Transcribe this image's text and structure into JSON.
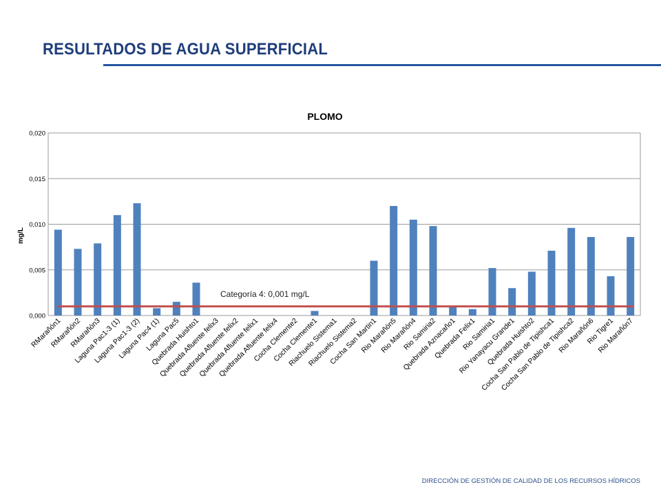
{
  "slide": {
    "title": "RESULTADOS DE AGUA SUPERFICIAL",
    "footer": "DIRECCIÓN DE GESTIÓN DE CALIDAD DE LOS RECURSOS HÍDRICOS"
  },
  "colors": {
    "title": "#1f3d7a",
    "rule": "#2255a0",
    "bar": "#4f81bd",
    "reference_line": "#c0504d",
    "gridline": "#9a9a9a"
  },
  "chart_data": {
    "type": "bar",
    "title": "PLOMO",
    "ylabel": "mg/L",
    "xlabel": "",
    "ylim": [
      0,
      0.02
    ],
    "yticks": [
      "0,000",
      "0,005",
      "0,010",
      "0,015",
      "0,020"
    ],
    "ytick_values": [
      0,
      0.005,
      0.01,
      0.015,
      0.02
    ],
    "grid": true,
    "legend": "none",
    "categories": [
      "RMarañón1",
      "RMarañón2",
      "RMarañón3",
      "Laguna Pac1-3 (1)",
      "Laguna Pac1-3 (2)",
      "Laguna Pac4 (1)",
      "Laguna Pac5",
      "Quebrada Huishto1",
      "Quebrada Afluente felix3",
      "Quebrada Afluente felix2",
      "Quebrada Afluente felix1",
      "Quebrada Afluente felix4",
      "Cocha Clemente2",
      "Cocha Clemente1",
      "Riachuelo Sistema1",
      "Riachuelo Sistema2",
      "Cocha San Martin1",
      "Rio Marañón5",
      "Rio Marañón4",
      "Rio Samiria2",
      "Quebrada Aznacaño1",
      "Quebrada Felix1",
      "Rio Samiria1",
      "Rio Yanayacu Grande1",
      "Quebrada Huishto2",
      "Cocha San Pablo de Tipishca1",
      "Cocha San Pablo de Tipishca2",
      "Rio Marañón6",
      "Rio Tigre1",
      "Rio Marañón7"
    ],
    "values": [
      0.0094,
      0.0073,
      0.0079,
      0.011,
      0.0123,
      0.0008,
      0.0015,
      0.0036,
      null,
      null,
      null,
      null,
      null,
      0.0005,
      null,
      null,
      0.006,
      0.012,
      0.0105,
      0.0098,
      0.001,
      0.0007,
      0.0052,
      0.003,
      0.0048,
      0.0071,
      0.0096,
      0.0086,
      0.0043,
      0.0086
    ],
    "reference_line": {
      "value": 0.001,
      "label": "Categoría 4: 0,001 mg/L"
    }
  }
}
